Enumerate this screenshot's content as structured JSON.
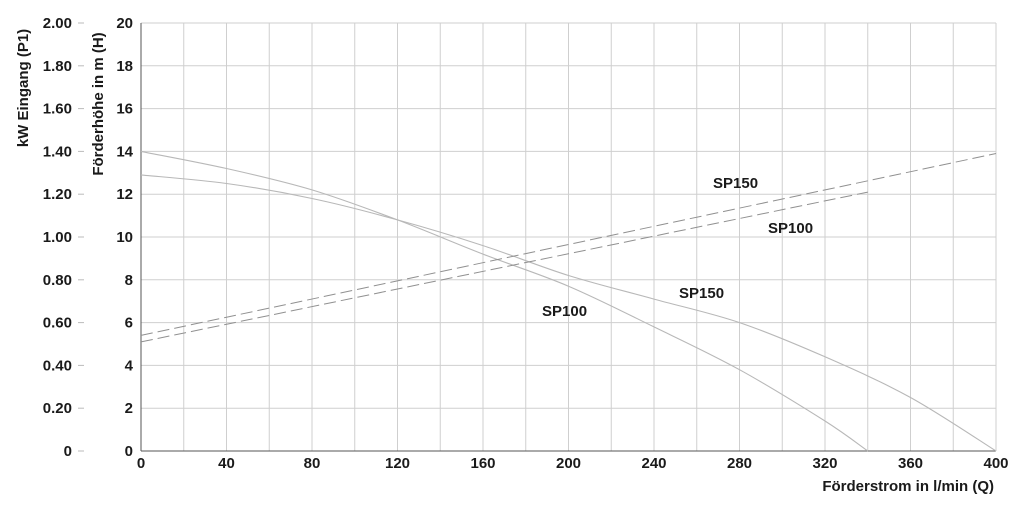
{
  "chart_data": {
    "type": "line",
    "xlabel": "Förderstrom in l/min (Q)",
    "ylabel": "Förderhöhe in m (H)",
    "y2label": "kW Eingang (P1)",
    "xlim": [
      0,
      400
    ],
    "ylim": [
      0,
      20
    ],
    "y2lim": [
      0,
      2.0
    ],
    "x_ticks": [
      "0",
      "40",
      "80",
      "120",
      "160",
      "200",
      "240",
      "280",
      "320",
      "360",
      "400"
    ],
    "y_ticks": [
      "0",
      "2",
      "4",
      "6",
      "8",
      "10",
      "12",
      "14",
      "16",
      "18",
      "20"
    ],
    "y2_ticks": [
      "0",
      "0.20",
      "0.40",
      "0.60",
      "0.80",
      "1.00",
      "1.20",
      "1.40",
      "1.60",
      "1.80",
      "2.00"
    ],
    "grid": true,
    "colors": {
      "curve": "#b8b8b8",
      "power": "#909090",
      "grid": "#cfcfcf",
      "text": "#1a1a1a"
    },
    "head_series": [
      {
        "name": "SP100",
        "x": [
          0,
          40,
          80,
          120,
          160,
          200,
          240,
          280,
          320,
          340
        ],
        "y": [
          14,
          13.2,
          12.2,
          10.8,
          9.2,
          7.7,
          5.8,
          3.8,
          1.4,
          0
        ]
      },
      {
        "name": "SP150",
        "x": [
          0,
          40,
          80,
          120,
          160,
          200,
          240,
          280,
          320,
          360,
          400
        ],
        "y": [
          12.9,
          12.5,
          11.8,
          10.8,
          9.6,
          8.2,
          7.1,
          6.0,
          4.4,
          2.5,
          0
        ]
      }
    ],
    "power_series": [
      {
        "name": "SP150",
        "x": [
          0,
          400
        ],
        "y": [
          0.54,
          1.39
        ]
      },
      {
        "name": "SP100",
        "x": [
          0,
          340
        ],
        "y": [
          0.51,
          1.21
        ]
      }
    ],
    "labels": [
      {
        "text": "SP150",
        "target": "power SP150"
      },
      {
        "text": "SP100",
        "target": "power SP100"
      },
      {
        "text": "SP150",
        "target": "head SP150"
      },
      {
        "text": "SP100",
        "target": "head SP100"
      }
    ]
  }
}
